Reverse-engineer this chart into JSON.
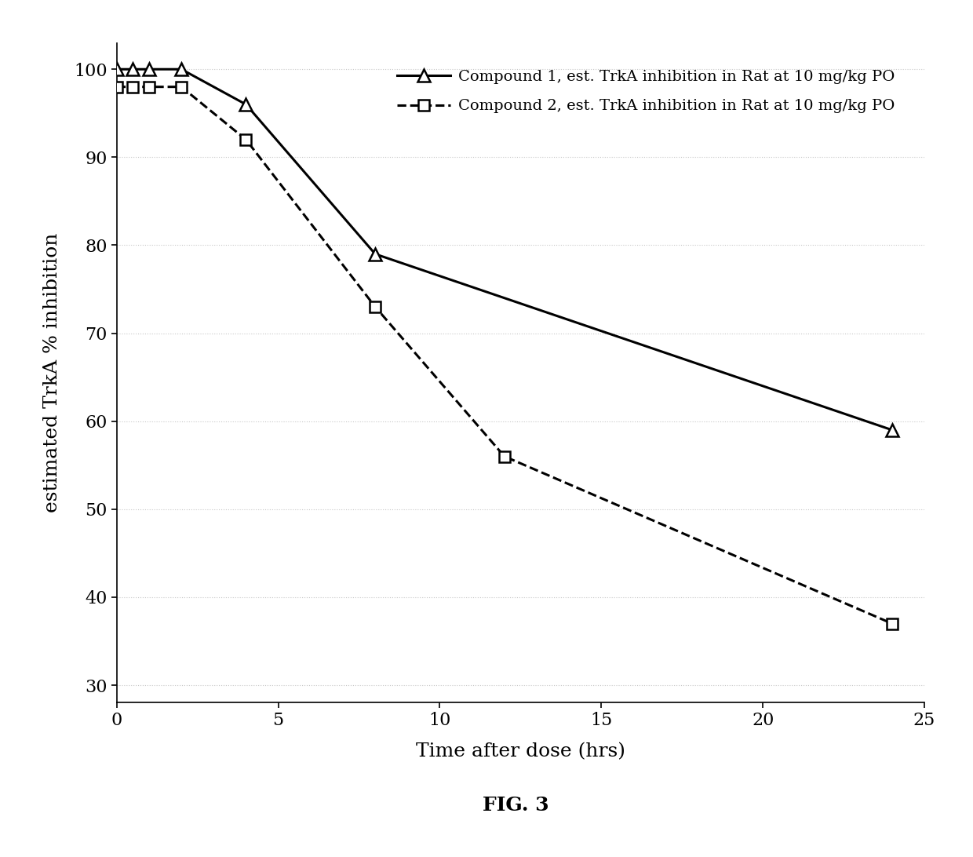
{
  "compound1_x": [
    0,
    0.5,
    1,
    2,
    4,
    8,
    24
  ],
  "compound1_y": [
    100,
    100,
    100,
    100,
    96,
    79,
    59
  ],
  "compound2_x": [
    0,
    0.5,
    1,
    2,
    4,
    8,
    12,
    24
  ],
  "compound2_y": [
    98,
    98,
    98,
    98,
    92,
    73,
    56,
    37
  ],
  "compound1_label": "Compound 1, est. TrkA inhibition in Rat at 10 mg/kg PO",
  "compound2_label": "Compound 2, est. TrkA inhibition in Rat at 10 mg/kg PO",
  "xlabel": "Time after dose (hrs)",
  "ylabel": "estimated TrkA % inhibition",
  "fig_label": "FIG. 3",
  "xlim": [
    0,
    25
  ],
  "ylim": [
    28,
    103
  ],
  "xticks": [
    0,
    5,
    10,
    15,
    20,
    25
  ],
  "yticks": [
    30,
    40,
    50,
    60,
    70,
    80,
    90,
    100
  ],
  "background_color": "#ffffff",
  "line1_color": "#000000",
  "line2_color": "#000000",
  "grid_color": "#c8c8c8"
}
